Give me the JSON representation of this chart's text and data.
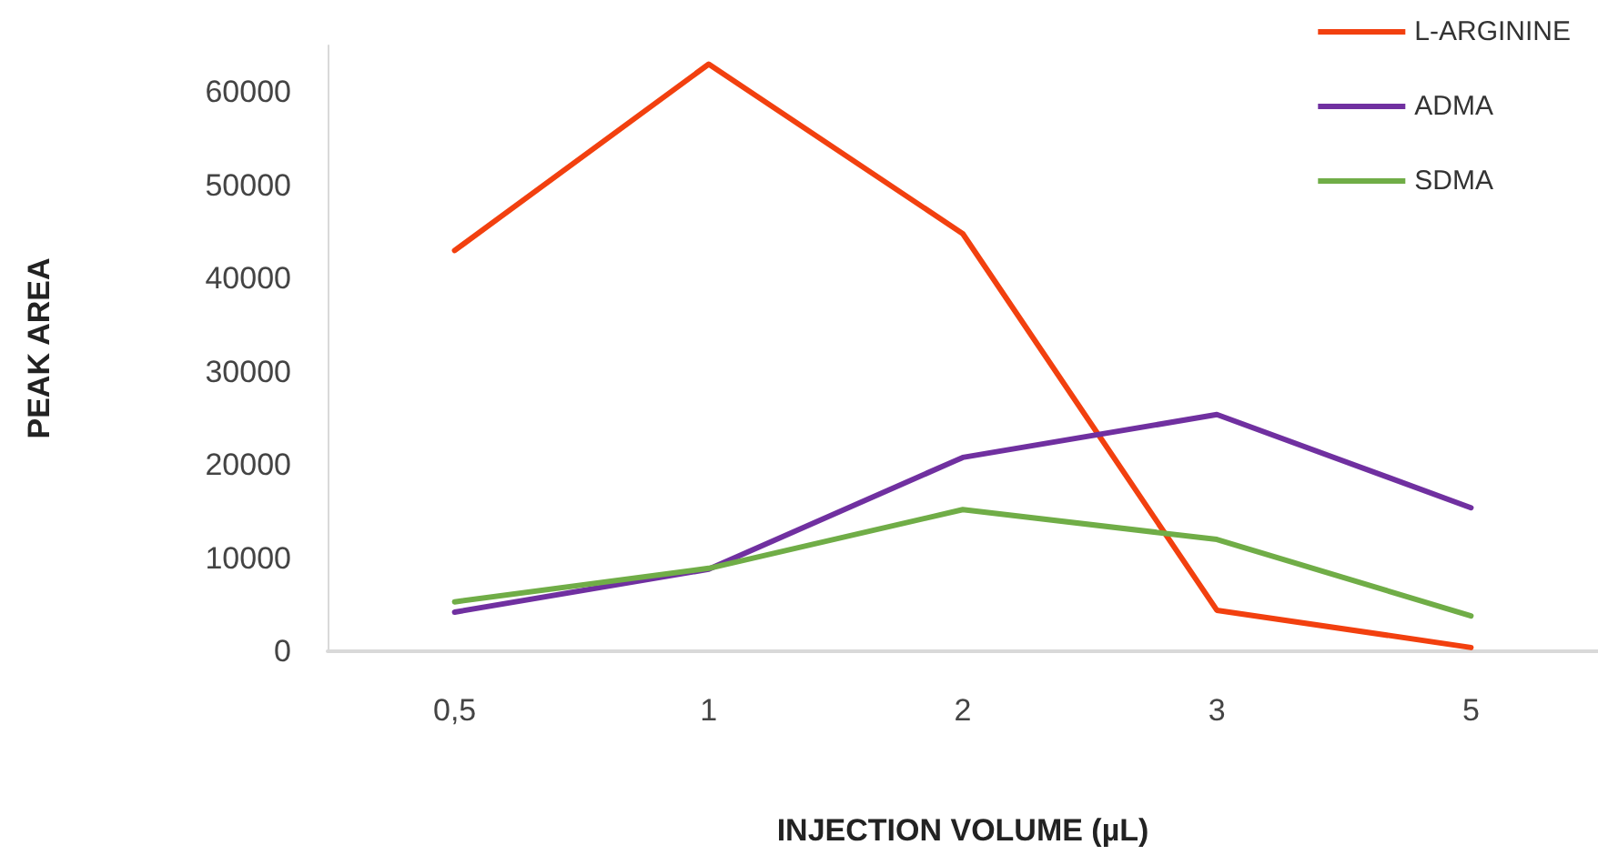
{
  "chart_data": {
    "type": "line",
    "xlabel": "INJECTION VOLUME (µL)",
    "ylabel": "PEAK AREA",
    "categories": [
      "0,5",
      "1",
      "2",
      "3",
      "5"
    ],
    "series": [
      {
        "name": "L-ARGININE",
        "color": "#f2400f",
        "values": [
          43000,
          63000,
          44800,
          4400,
          400
        ]
      },
      {
        "name": "ADMA",
        "color": "#7030a0",
        "values": [
          4200,
          8800,
          20800,
          25400,
          15400
        ]
      },
      {
        "name": "SDMA",
        "color": "#70ad47",
        "values": [
          5300,
          8900,
          15200,
          12000,
          3800
        ]
      }
    ],
    "ylim": [
      0,
      65000
    ],
    "yticks": [
      0,
      10000,
      20000,
      30000,
      40000,
      50000,
      60000
    ],
    "grid": false,
    "legend": "top right",
    "marker": "none",
    "line_style": "solid"
  }
}
